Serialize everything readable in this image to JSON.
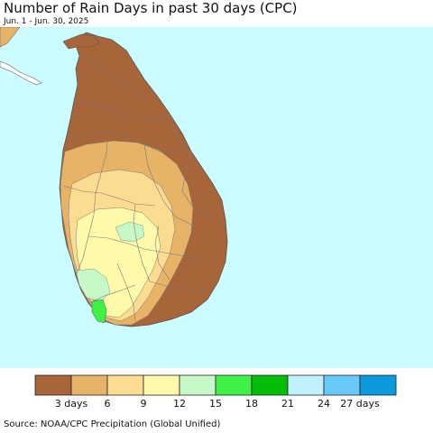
{
  "title": "Number of Rain Days in past 30 days (CPC)",
  "subtitle": "Jun. 1 - Jun. 30, 2025",
  "source": "Source: NOAA/CPC Precipitation (Global Unified)",
  "legend": {
    "colors": [
      "#a9653a",
      "#e6b367",
      "#fcdc90",
      "#fdfaaa",
      "#c7f8c7",
      "#3ff046",
      "#03be06",
      "#bff0fb",
      "#67caf9",
      "#0b9ade"
    ],
    "labels": [
      "3 days",
      "6",
      "9",
      "12",
      "15",
      "18",
      "21",
      "24",
      "27 days"
    ]
  },
  "map_colors": {
    "ocean": "#cbfcff",
    "land_outside": "#ffffff",
    "boundary": "#777777"
  }
}
